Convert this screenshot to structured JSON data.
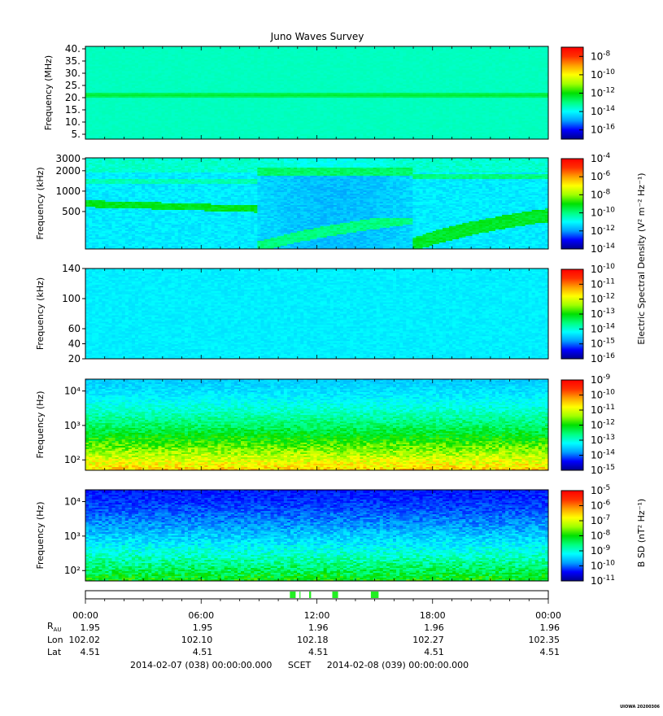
{
  "title": "Juno Waves Survey",
  "colors": {
    "colormap": [
      "#00008b",
      "#0000ff",
      "#00a0ff",
      "#00ffff",
      "#00ff80",
      "#00e000",
      "#a0ff00",
      "#ffff00",
      "#ffa000",
      "#ff3000",
      "#ff0000"
    ],
    "frame": "#000000",
    "gap_marker": "#22ee22"
  },
  "chart_data": [
    {
      "type": "heatmap",
      "name": "panel-mhz",
      "ylabel": "Frequency (MHz)",
      "yscale": "linear",
      "ylim": [
        3,
        41
      ],
      "yticks": [
        5,
        10,
        15,
        20,
        25,
        30,
        35,
        40
      ],
      "ytick_labels": [
        "5.",
        "10.",
        "15.",
        "20.",
        "25.",
        "30.",
        "35.",
        "40."
      ],
      "colorbar": {
        "ticks": [
          "10-8",
          "10-10",
          "10-12",
          "10-14",
          "10-16"
        ],
        "log_range": [
          -17,
          -7
        ]
      },
      "background_level": -13.5,
      "bands": [
        {
          "y": 21,
          "level": -12.4
        },
        {
          "y": 8.5,
          "level": -14.2
        },
        {
          "y": 31,
          "level": -13.7
        }
      ]
    },
    {
      "type": "heatmap",
      "name": "panel-khz-high",
      "ylabel": "Frequency (kHz)",
      "yscale": "log",
      "ylim": [
        140,
        3100
      ],
      "yticks": [
        500,
        1000,
        2000,
        3000
      ],
      "ytick_labels": [
        "500",
        "1000",
        "2000",
        "3000"
      ],
      "colorbar": {
        "ticks": [
          "10-4",
          "10-6",
          "10-8",
          "10-10",
          "10-12",
          "10-14"
        ],
        "log_range": [
          -14,
          -4
        ]
      },
      "background_level": -11.2,
      "features": [
        "emission band near 650 kHz until 09:00",
        "depletion from 09:00 to 17:00",
        "recovering emission after 17:00"
      ]
    },
    {
      "type": "heatmap",
      "name": "panel-khz-low",
      "ylabel": "Frequency (kHz)",
      "yscale": "linear",
      "ylim": [
        20,
        140
      ],
      "yticks": [
        20,
        40,
        60,
        100,
        140
      ],
      "ytick_labels": [
        "20",
        "40",
        "60",
        "100",
        "140"
      ],
      "colorbar": {
        "ticks": [
          "10-10",
          "10-11",
          "10-12",
          "10-13",
          "10-14",
          "10-15",
          "10-16"
        ],
        "log_range": [
          -16,
          -10
        ]
      },
      "background_level": -14.3
    },
    {
      "type": "heatmap",
      "name": "panel-hz-electric",
      "ylabel": "Frequency (Hz)",
      "yscale": "log",
      "ylim": [
        50,
        22000
      ],
      "yticks": [
        100,
        1000,
        10000
      ],
      "ytick_labels": [
        "10²",
        "10³",
        "10⁴"
      ],
      "colorbar": {
        "ticks": [
          "10-9",
          "10-10",
          "10-11",
          "10-12",
          "10-13",
          "10-14",
          "10-15"
        ],
        "log_range": [
          -15,
          -9
        ]
      },
      "level_low_freq": -10.5,
      "level_high_freq": -13.5
    },
    {
      "type": "heatmap",
      "name": "panel-hz-magnetic",
      "ylabel": "Frequency (Hz)",
      "yscale": "log",
      "ylim": [
        50,
        22000
      ],
      "yticks": [
        100,
        1000,
        10000
      ],
      "ytick_labels": [
        "10²",
        "10³",
        "10⁴"
      ],
      "colorbar": {
        "ticks": [
          "10-5",
          "10-6",
          "10-7",
          "10-8",
          "10-9",
          "10-10",
          "10-11"
        ],
        "log_range": [
          -11,
          -5
        ]
      },
      "level_low_freq": -8.0,
      "level_high_freq": -10.3
    }
  ],
  "colorbar_labels": {
    "electric": "Electric Spectral Density (V² m⁻² Hz⁻¹)",
    "magnetic": "B SD (nT² Hz⁻¹)"
  },
  "time_axis": {
    "ticks": [
      "00:00",
      "06:00",
      "12:00",
      "18:00",
      "00:00"
    ],
    "range_hours": [
      0,
      24
    ]
  },
  "data_gaps_hours": [
    [
      10.6,
      10.9
    ],
    [
      11.1,
      11.15
    ],
    [
      11.6,
      11.7
    ],
    [
      12.8,
      13.1
    ],
    [
      14.8,
      15.2
    ]
  ],
  "ephemeris": {
    "rows": [
      {
        "label": "R",
        "label_sub": "AU",
        "values": [
          "1.95",
          "1.95",
          "1.96",
          "1.96",
          "1.96"
        ]
      },
      {
        "label": "Lon",
        "values": [
          "102.02",
          "102.10",
          "102.18",
          "102.27",
          "102.35"
        ]
      },
      {
        "label": "Lat",
        "values": [
          "4.51",
          "4.51",
          "4.51",
          "4.51",
          "4.51"
        ]
      }
    ]
  },
  "footer": {
    "start": "2014-02-07 (038) 00:00:00.000",
    "scet": "SCET",
    "end": "2014-02-08 (039) 00:00:00.000"
  },
  "credit": "UIOWA 20200306"
}
